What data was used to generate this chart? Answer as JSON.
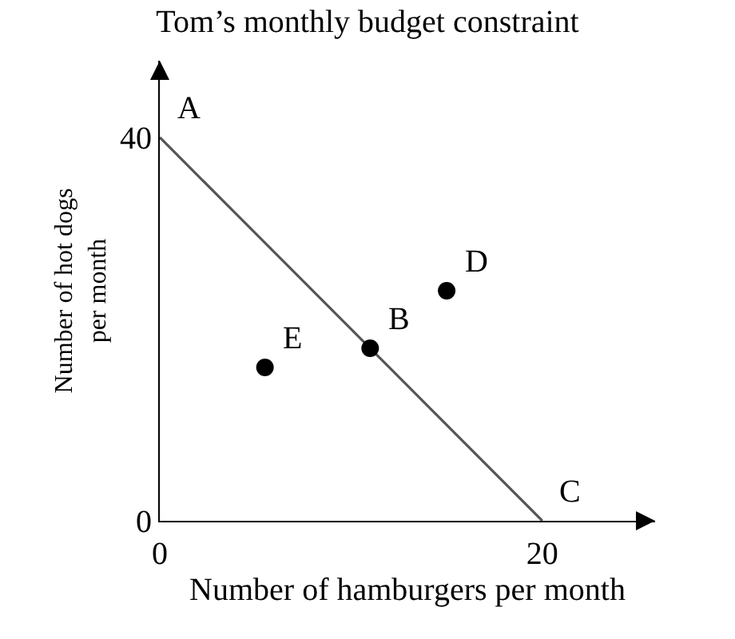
{
  "chart_data": {
    "type": "scatter",
    "title": "Tom’s monthly budget constraint",
    "xlabel": "Number of hamburgers per month",
    "ylabel": "Number of hot dogs\nper month",
    "series": [
      {
        "type": "line",
        "x": [
          0,
          20
        ],
        "values": [
          40,
          0
        ],
        "color": "#555555",
        "marker": "none"
      },
      {
        "x": [
          11,
          15,
          5.5
        ],
        "values": [
          18,
          24,
          16
        ],
        "color": "#000000",
        "marker": "circle"
      }
    ],
    "annotations": [
      {
        "text": "A",
        "x": 0,
        "y": 40
      },
      {
        "text": "B",
        "x": 11,
        "y": 18
      },
      {
        "text": "C",
        "x": 20,
        "y": 0
      },
      {
        "text": "D",
        "x": 15,
        "y": 24
      },
      {
        "text": "E",
        "x": 5.5,
        "y": 16
      }
    ],
    "xlim": [
      0,
      25.9
    ],
    "ylim": [
      0,
      48
    ],
    "xticks": [
      0,
      20
    ],
    "yticks": [
      0,
      40
    ]
  }
}
